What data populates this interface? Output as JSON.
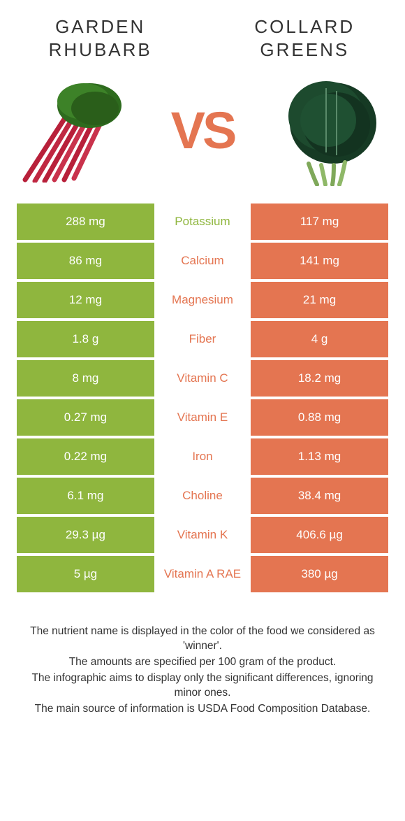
{
  "colors": {
    "left": "#8fb63e",
    "right": "#e47551",
    "vs": "#e47551",
    "text": "#333333",
    "bg": "#ffffff"
  },
  "left_title": "GARDEN RHUBARB",
  "right_title": "COLLARD GREENS",
  "vs_label": "VS",
  "rows": [
    {
      "nutrient": "Potassium",
      "left": "288 mg",
      "right": "117 mg",
      "winner": "left"
    },
    {
      "nutrient": "Calcium",
      "left": "86 mg",
      "right": "141 mg",
      "winner": "right"
    },
    {
      "nutrient": "Magnesium",
      "left": "12 mg",
      "right": "21 mg",
      "winner": "right"
    },
    {
      "nutrient": "Fiber",
      "left": "1.8 g",
      "right": "4 g",
      "winner": "right"
    },
    {
      "nutrient": "Vitamin C",
      "left": "8 mg",
      "right": "18.2 mg",
      "winner": "right"
    },
    {
      "nutrient": "Vitamin E",
      "left": "0.27 mg",
      "right": "0.88 mg",
      "winner": "right"
    },
    {
      "nutrient": "Iron",
      "left": "0.22 mg",
      "right": "1.13 mg",
      "winner": "right"
    },
    {
      "nutrient": "Choline",
      "left": "6.1 mg",
      "right": "38.4 mg",
      "winner": "right"
    },
    {
      "nutrient": "Vitamin K",
      "left": "29.3 µg",
      "right": "406.6 µg",
      "winner": "right"
    },
    {
      "nutrient": "Vitamin A RAE",
      "left": "5 µg",
      "right": "380 µg",
      "winner": "right"
    }
  ],
  "footer": {
    "line1": "The nutrient name is displayed in the color of the food we considered as 'winner'.",
    "line2": "The amounts are specified per 100 gram of the product.",
    "line3": "The infographic aims to display only the significant differences, ignoring minor ones.",
    "line4": "The main source of information is USDA Food Composition Database."
  }
}
